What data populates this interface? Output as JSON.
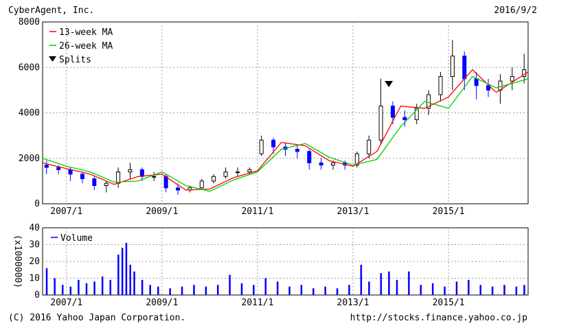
{
  "header": {
    "company": "CyberAgent, Inc.",
    "date": "2016/9/2"
  },
  "footer": {
    "copyright": "(C) 2016 Yahoo Japan Corporation.",
    "url": "http://stocks.finance.yahoo.co.jp"
  },
  "colors": {
    "up": "#000000",
    "down": "#0000ff",
    "ma13": "#ff0000",
    "ma26": "#00cc00",
    "volume": "#0000ff",
    "grid": "#999999"
  },
  "chart_data": [
    {
      "type": "candlestick",
      "x_range": [
        "2006/7",
        "2016/9"
      ],
      "ylim": [
        0,
        8000
      ],
      "y_ticks": [
        0,
        2000,
        4000,
        6000,
        8000
      ],
      "x_ticks": [
        "2007/1",
        "2009/1",
        "2011/1",
        "2013/1",
        "2015/1"
      ],
      "grid": true,
      "legend": {
        "position": "top-left",
        "entries": [
          "13-week MA",
          "26-week MA",
          "Splits"
        ]
      },
      "splits": [
        {
          "date": "2013/10",
          "marker": "down-triangle"
        }
      ],
      "series": [
        {
          "name": "13-week MA",
          "color": "#ff0000",
          "x": [
            "2006/7",
            "2007/1",
            "2007/7",
            "2008/1",
            "2008/7",
            "2009/1",
            "2009/7",
            "2010/1",
            "2010/7",
            "2011/1",
            "2011/7",
            "2012/1",
            "2012/7",
            "2013/1",
            "2013/7",
            "2014/1",
            "2014/7",
            "2015/1",
            "2015/7",
            "2016/1",
            "2016/9"
          ],
          "values": [
            1800,
            1550,
            1300,
            850,
            1200,
            1300,
            600,
            650,
            1150,
            1450,
            2700,
            2550,
            1900,
            1650,
            2300,
            4300,
            4200,
            4700,
            5900,
            4900,
            5800
          ]
        },
        {
          "name": "26-week MA",
          "color": "#00cc00",
          "x": [
            "2006/7",
            "2007/1",
            "2007/7",
            "2008/1",
            "2008/7",
            "2009/1",
            "2009/7",
            "2010/1",
            "2010/7",
            "2011/1",
            "2011/7",
            "2012/1",
            "2012/7",
            "2013/1",
            "2013/7",
            "2014/1",
            "2014/7",
            "2015/1",
            "2015/7",
            "2016/1",
            "2016/9"
          ],
          "values": [
            2000,
            1650,
            1400,
            950,
            1000,
            1400,
            800,
            550,
            1050,
            1400,
            2400,
            2650,
            2050,
            1700,
            1950,
            3400,
            4500,
            4200,
            5600,
            5100,
            5500
          ]
        }
      ],
      "candles": {
        "x": [
          "2006/8",
          "2006/11",
          "2007/2",
          "2007/5",
          "2007/8",
          "2007/11",
          "2008/2",
          "2008/5",
          "2008/8",
          "2008/11",
          "2009/2",
          "2009/5",
          "2009/8",
          "2009/11",
          "2010/2",
          "2010/5",
          "2010/8",
          "2010/11",
          "2011/2",
          "2011/5",
          "2011/8",
          "2011/11",
          "2012/2",
          "2012/5",
          "2012/8",
          "2012/11",
          "2013/2",
          "2013/5",
          "2013/8",
          "2013/11",
          "2014/2",
          "2014/5",
          "2014/8",
          "2014/11",
          "2015/2",
          "2015/5",
          "2015/8",
          "2015/11",
          "2016/2",
          "2016/5",
          "2016/8"
        ],
        "open": [
          1700,
          1600,
          1500,
          1300,
          1100,
          800,
          900,
          1400,
          1500,
          1200,
          1200,
          700,
          600,
          700,
          1000,
          1200,
          1400,
          1400,
          2200,
          2800,
          2500,
          2400,
          2300,
          1800,
          1700,
          1800,
          1700,
          2200,
          2800,
          4300,
          3800,
          3700,
          4200,
          4800,
          5600,
          6500,
          5500,
          5200,
          5000,
          5400,
          5600
        ],
        "close": [
          1600,
          1500,
          1300,
          1100,
          800,
          900,
          1400,
          1500,
          1200,
          1200,
          700,
          600,
          700,
          1000,
          1200,
          1400,
          1400,
          1500,
          2800,
          2500,
          2400,
          2300,
          1800,
          1700,
          1800,
          1700,
          2200,
          2800,
          4300,
          3800,
          3700,
          4200,
          4800,
          5600,
          6500,
          5500,
          5200,
          5000,
          5400,
          5600,
          5900
        ],
        "high": [
          1900,
          1700,
          1600,
          1400,
          1200,
          1000,
          1600,
          1800,
          1600,
          1400,
          1300,
          900,
          800,
          1100,
          1300,
          1600,
          1600,
          1600,
          3000,
          2900,
          2700,
          2600,
          2400,
          2000,
          1900,
          1900,
          2300,
          3000,
          5500,
          4500,
          4100,
          4400,
          5000,
          5800,
          7200,
          6700,
          5800,
          5500,
          5700,
          6000,
          6600
        ],
        "low": [
          1300,
          1300,
          1000,
          900,
          600,
          500,
          700,
          1100,
          1000,
          1000,
          500,
          400,
          500,
          600,
          900,
          1100,
          1200,
          1300,
          2100,
          2200,
          2100,
          2000,
          1500,
          1500,
          1500,
          1500,
          1600,
          2000,
          2600,
          3500,
          3400,
          3500,
          3900,
          4500,
          5000,
          5000,
          4600,
          4700,
          4400,
          5000,
          5300
        ]
      }
    },
    {
      "type": "bar",
      "title": "Volume",
      "ylabel": "(x1000000)",
      "ylim": [
        0,
        40
      ],
      "y_ticks": [
        0,
        10,
        20,
        30,
        40
      ],
      "x_ticks": [
        "2007/1",
        "2009/1",
        "2011/1",
        "2013/1",
        "2015/1"
      ],
      "legend": {
        "position": "top-left",
        "entries": [
          "Volume"
        ]
      },
      "series": [
        {
          "name": "Volume",
          "color": "#0000ff",
          "x": [
            "2006/8",
            "2006/10",
            "2006/12",
            "2007/2",
            "2007/4",
            "2007/6",
            "2007/8",
            "2007/10",
            "2007/12",
            "2008/2",
            "2008/3",
            "2008/4",
            "2008/5",
            "2008/6",
            "2008/8",
            "2008/10",
            "2008/12",
            "2009/3",
            "2009/6",
            "2009/9",
            "2009/12",
            "2010/3",
            "2010/6",
            "2010/9",
            "2010/12",
            "2011/3",
            "2011/6",
            "2011/9",
            "2011/12",
            "2012/3",
            "2012/6",
            "2012/9",
            "2012/12",
            "2013/3",
            "2013/5",
            "2013/8",
            "2013/10",
            "2013/12",
            "2014/3",
            "2014/6",
            "2014/9",
            "2014/12",
            "2015/3",
            "2015/6",
            "2015/9",
            "2015/12",
            "2016/3",
            "2016/6",
            "2016/8"
          ],
          "values": [
            16,
            10,
            6,
            5,
            9,
            7,
            8,
            11,
            9,
            24,
            28,
            31,
            18,
            14,
            9,
            6,
            5,
            4,
            5,
            6,
            5,
            6,
            12,
            7,
            6,
            10,
            8,
            5,
            6,
            4,
            5,
            4,
            6,
            18,
            8,
            13,
            14,
            9,
            14,
            6,
            7,
            5,
            8,
            9,
            6,
            5,
            6,
            5,
            6
          ]
        }
      ]
    }
  ]
}
